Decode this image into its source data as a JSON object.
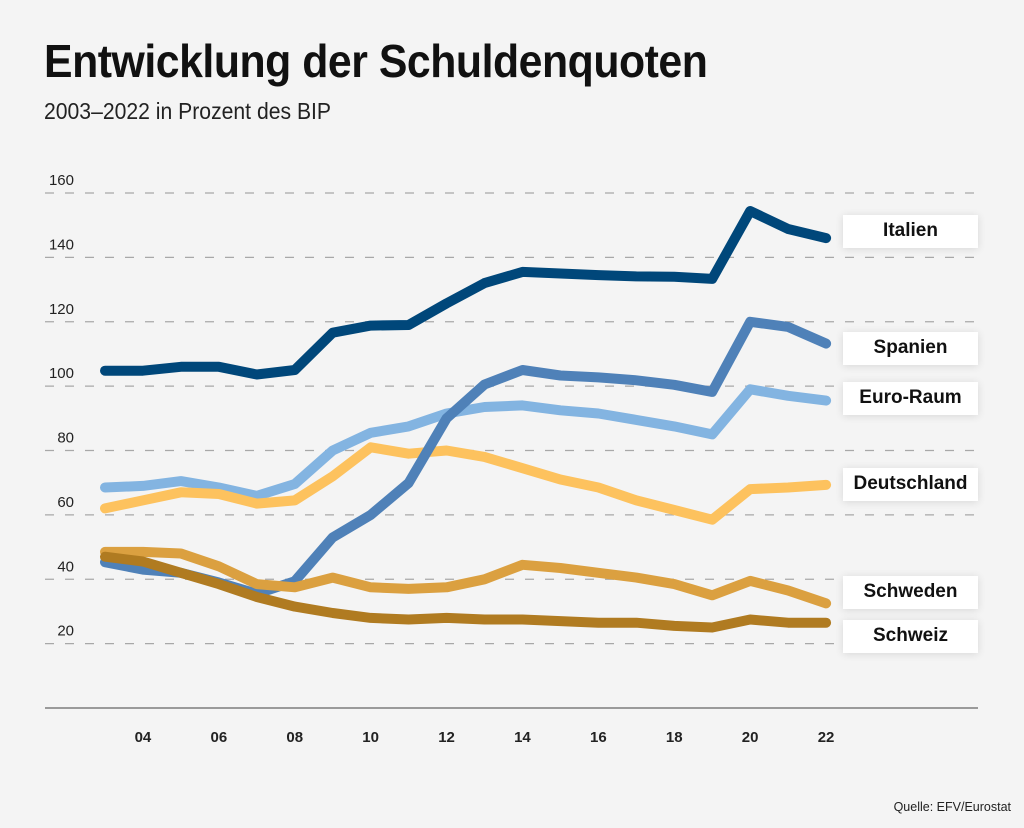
{
  "header": {
    "title": "Entwicklung der Schuldenquoten",
    "subtitle": "2003–2022 in Prozent des BIP"
  },
  "footer": {
    "source": "Quelle: EFV/Eurostat"
  },
  "chart_data": {
    "type": "line",
    "title": "Entwicklung der Schuldenquoten",
    "subtitle": "2003–2022 in Prozent des BIP",
    "xlabel": "",
    "ylabel": "",
    "x": [
      2003,
      2004,
      2005,
      2006,
      2007,
      2008,
      2009,
      2010,
      2011,
      2012,
      2013,
      2014,
      2015,
      2016,
      2017,
      2018,
      2019,
      2020,
      2021,
      2022
    ],
    "x_ticks": [
      "04",
      "06",
      "08",
      "10",
      "12",
      "14",
      "16",
      "18",
      "20",
      "22"
    ],
    "x_tick_values": [
      2004,
      2006,
      2008,
      2010,
      2012,
      2014,
      2016,
      2018,
      2020,
      2022
    ],
    "y_ticks": [
      "160",
      "140",
      "120",
      "100",
      "80",
      "60",
      "40",
      "20"
    ],
    "y_tick_values": [
      160,
      140,
      120,
      100,
      80,
      60,
      40,
      20
    ],
    "ylim": [
      0,
      160
    ],
    "xlim": [
      2002,
      2025
    ],
    "grid": true,
    "legend": "right (direct labels at line ends)",
    "series": [
      {
        "name": "Italien",
        "color": "#00477a",
        "values": [
          104.8,
          104.8,
          106.0,
          106.0,
          103.6,
          105.0,
          116.6,
          118.8,
          119.0,
          125.7,
          132.0,
          135.5,
          135.0,
          134.5,
          134.1,
          134.0,
          133.3,
          154.4,
          148.8,
          146.0
        ]
      },
      {
        "name": "Spanien",
        "color": "#4f81b8",
        "values": [
          45.3,
          43.0,
          42.0,
          39.0,
          35.5,
          39.4,
          53.0,
          60.0,
          69.9,
          90.0,
          100.5,
          105.0,
          103.3,
          102.7,
          101.8,
          100.4,
          98.2,
          120.0,
          118.4,
          113.2
        ]
      },
      {
        "name": "Euro-Raum",
        "color": "#83b4e1",
        "values": [
          68.5,
          69.0,
          70.5,
          68.5,
          65.9,
          69.6,
          80.0,
          85.5,
          87.5,
          91.5,
          93.5,
          94.0,
          92.5,
          91.5,
          89.5,
          87.5,
          85.0,
          99.0,
          97.0,
          95.5
        ]
      },
      {
        "name": "Deutschland",
        "color": "#fdc25e",
        "values": [
          62.0,
          64.5,
          67.0,
          66.5,
          63.5,
          64.5,
          72.0,
          81.0,
          79.0,
          80.0,
          78.0,
          74.5,
          71.0,
          68.5,
          64.5,
          61.5,
          58.5,
          68.0,
          68.5,
          69.3
        ]
      },
      {
        "name": "Schweden",
        "color": "#dba040",
        "values": [
          48.5,
          48.5,
          48.0,
          44.0,
          38.5,
          37.5,
          40.5,
          37.5,
          37.0,
          37.5,
          40.0,
          44.5,
          43.5,
          42.0,
          40.5,
          38.5,
          35.0,
          39.5,
          36.5,
          32.5
        ]
      },
      {
        "name": "Schweiz",
        "color": "#b07b21",
        "values": [
          47.0,
          45.5,
          42.0,
          38.5,
          34.5,
          31.5,
          29.5,
          28.0,
          27.5,
          28.0,
          27.5,
          27.5,
          27.0,
          26.5,
          26.5,
          25.5,
          25.0,
          27.5,
          26.5,
          26.5
        ]
      }
    ],
    "labels": [
      {
        "name": "Italien",
        "text": "Italien"
      },
      {
        "name": "Spanien",
        "text": "Spanien"
      },
      {
        "name": "Euro-Raum",
        "text": "Euro-Raum"
      },
      {
        "name": "Deutschland",
        "text": "Deutschland"
      },
      {
        "name": "Schweden",
        "text": "Schweden"
      },
      {
        "name": "Schweiz",
        "text": "Schweiz"
      }
    ]
  }
}
